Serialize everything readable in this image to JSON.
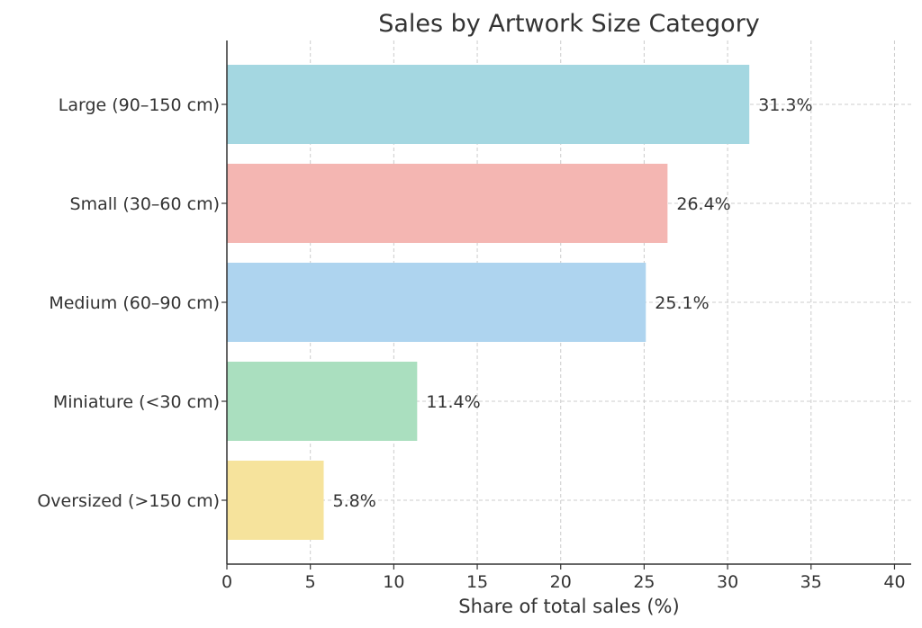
{
  "chart_data": {
    "type": "bar",
    "orientation": "horizontal",
    "title": "Sales by Artwork Size Category",
    "xlabel": "Share of total sales (%)",
    "ylabel": "",
    "categories": [
      "Large (90–150 cm)",
      "Small (30–60 cm)",
      "Medium (60–90 cm)",
      "Miniature (<30 cm)",
      "Oversized (>150 cm)"
    ],
    "values": [
      31.3,
      26.4,
      25.1,
      11.4,
      5.8
    ],
    "data_labels": [
      "31.3%",
      "26.4%",
      "25.1%",
      "11.4%",
      "5.8%"
    ],
    "colors": [
      "#a4d7e1",
      "#f4b6b2",
      "#aed4ef",
      "#aadfbf",
      "#f6e39c"
    ],
    "xlim": [
      0,
      41
    ],
    "xticks": [
      0,
      5,
      10,
      15,
      20,
      25,
      30,
      35,
      40
    ],
    "grid": true
  }
}
